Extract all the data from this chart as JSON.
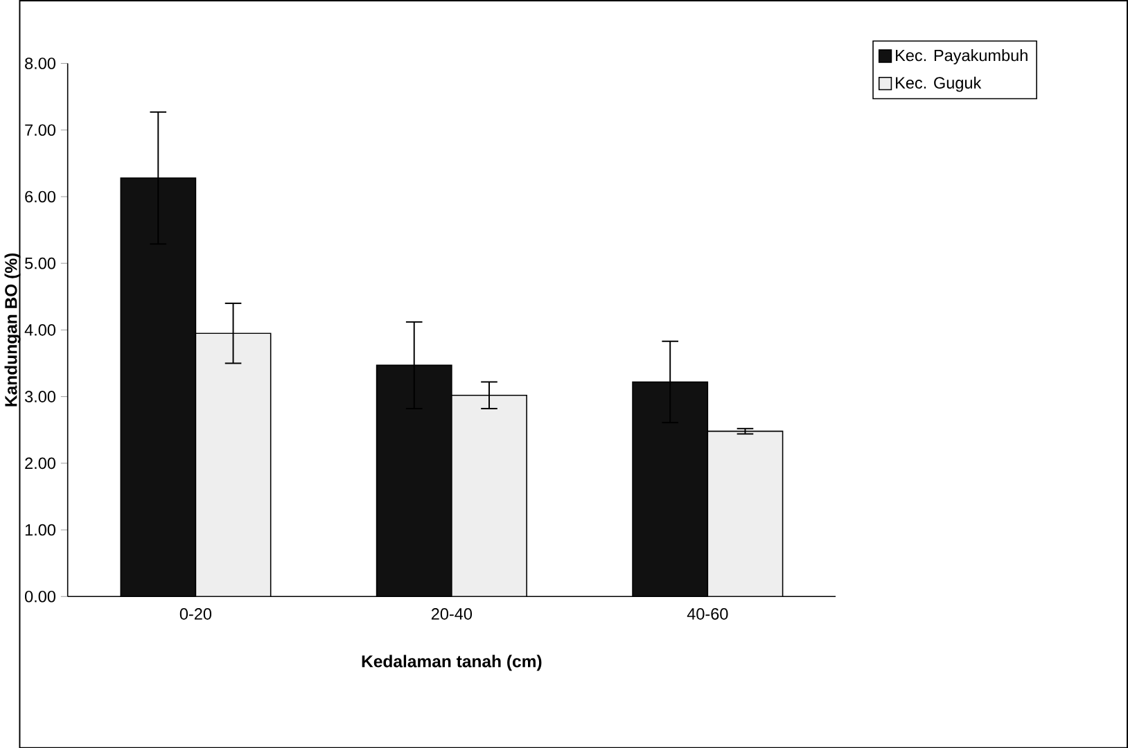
{
  "chart_data": {
    "type": "bar",
    "xlabel": "Kedalaman tanah (cm)",
    "ylabel": "Kandungan BO (%)",
    "categories": [
      "0-20",
      "20-40",
      "40-60"
    ],
    "series": [
      {
        "name": "Kec. Payakumbuh",
        "color": "#111111",
        "values": [
          6.28,
          3.47,
          3.22
        ],
        "errors": [
          0.99,
          0.65,
          0.61
        ]
      },
      {
        "name": "Kec. Guguk",
        "color": "#eeeeee",
        "values": [
          3.95,
          3.02,
          2.48
        ],
        "errors": [
          0.45,
          0.2,
          0.04
        ]
      }
    ],
    "ylim": [
      0,
      8
    ],
    "yticks": [
      {
        "value": 0,
        "label": "0.00"
      },
      {
        "value": 1,
        "label": "1.00"
      },
      {
        "value": 2,
        "label": "2.00"
      },
      {
        "value": 3,
        "label": "3.00"
      },
      {
        "value": 4,
        "label": "4.00"
      },
      {
        "value": 5,
        "label": "5.00"
      },
      {
        "value": 6,
        "label": "6.00"
      },
      {
        "value": 7,
        "label": "7.00"
      },
      {
        "value": 8,
        "label": "8.00"
      }
    ],
    "grid": false,
    "legend": "top right"
  }
}
